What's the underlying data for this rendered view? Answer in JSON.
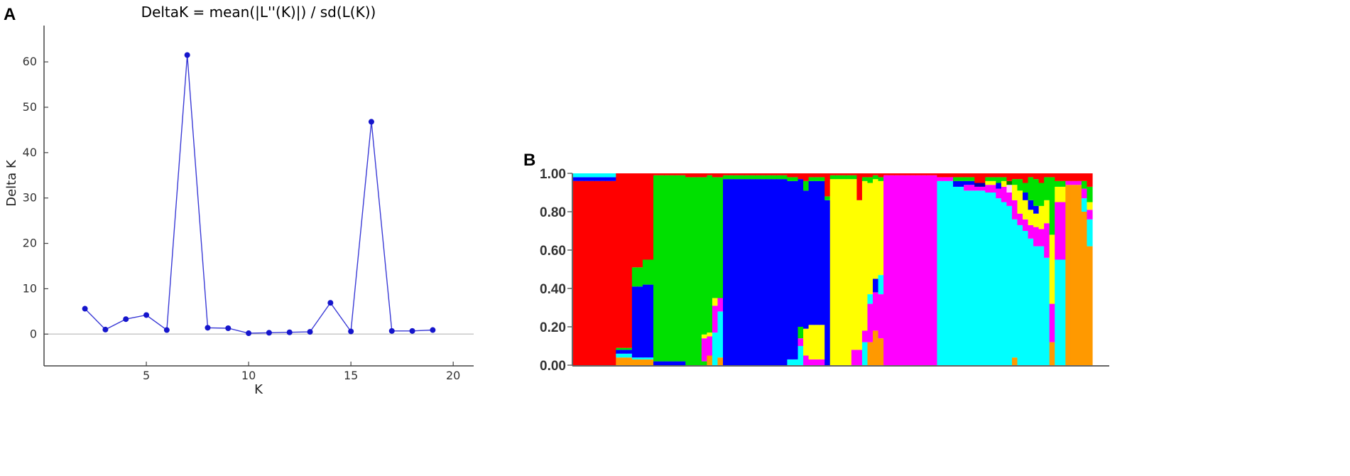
{
  "chart_data": [
    {
      "panel": "A",
      "type": "line",
      "title": "DeltaK = mean(|L''(K)|) / sd(L(K))",
      "xlabel": "K",
      "ylabel": "Delta K",
      "x": [
        2,
        3,
        4,
        5,
        6,
        7,
        8,
        9,
        10,
        11,
        12,
        13,
        14,
        15,
        16,
        17,
        18,
        19
      ],
      "y": [
        5.6,
        1.0,
        3.3,
        4.2,
        0.9,
        61.5,
        1.4,
        1.3,
        0.2,
        0.3,
        0.4,
        0.5,
        6.9,
        0.6,
        46.8,
        0.7,
        0.7,
        0.9
      ],
      "xlim": [
        0,
        21
      ],
      "ylim": [
        -7,
        68
      ],
      "xticks": [
        5,
        10,
        15,
        20
      ],
      "yticks": [
        0,
        10,
        20,
        30,
        40,
        50,
        60
      ],
      "colors": {
        "line": "#3a3ad6",
        "marker": "#1515cc",
        "zero_line": "#c8c8c8"
      }
    },
    {
      "panel": "B",
      "type": "bar",
      "stacked": true,
      "ylim": [
        0,
        1
      ],
      "yticks": [
        "0.00",
        "0.20",
        "0.40",
        "0.60",
        "0.80",
        "1.00"
      ],
      "colors": {
        "red": "#ff0000",
        "green": "#00e000",
        "blue": "#0000ff",
        "yellow": "#ffff00",
        "magenta": "#ff00ff",
        "cyan": "#00ffff",
        "orange": "#ff9900",
        "navy": "#0000aa",
        "darkgreen": "#007700",
        "lightpink": "#ffccff"
      },
      "groups": [
        {
          "n": 8,
          "comp": [
            [
              "red",
              0.96
            ],
            [
              "blue",
              0.02
            ],
            [
              "cyan",
              0.02
            ]
          ]
        },
        {
          "n": 3,
          "comp": [
            [
              "orange",
              0.04
            ],
            [
              "cyan",
              0.02
            ],
            [
              "blue",
              0.02
            ],
            [
              "green",
              0.01
            ],
            [
              "red",
              0.91
            ]
          ]
        },
        {
          "n": 2,
          "comp": [
            [
              "orange",
              0.03
            ],
            [
              "cyan",
              0.01
            ],
            [
              "blue",
              0.37
            ],
            [
              "green",
              0.1
            ],
            [
              "red",
              0.49
            ]
          ]
        },
        {
          "n": 2,
          "comp": [
            [
              "orange",
              0.03
            ],
            [
              "cyan",
              0.01
            ],
            [
              "blue",
              0.38
            ],
            [
              "green",
              0.13
            ],
            [
              "red",
              0.45
            ]
          ]
        },
        {
          "n": 6,
          "comp": [
            [
              "blue",
              0.02
            ],
            [
              "green",
              0.97
            ],
            [
              "red",
              0.01
            ]
          ]
        },
        {
          "n": 3,
          "comp": [
            [
              "green",
              0.98
            ],
            [
              "red",
              0.02
            ]
          ]
        },
        {
          "n": 1,
          "comp": [
            [
              "green",
              0.02
            ],
            [
              "magenta",
              0.12
            ],
            [
              "yellow",
              0.02
            ],
            [
              "green",
              0.82
            ],
            [
              "red",
              0.02
            ]
          ]
        },
        {
          "n": 1,
          "comp": [
            [
              "orange",
              0.05
            ],
            [
              "magenta",
              0.1
            ],
            [
              "yellow",
              0.02
            ],
            [
              "green",
              0.82
            ],
            [
              "red",
              0.01
            ]
          ]
        },
        {
          "n": 1,
          "comp": [
            [
              "cyan",
              0.17
            ],
            [
              "magenta",
              0.14
            ],
            [
              "yellow",
              0.04
            ],
            [
              "green",
              0.63
            ],
            [
              "red",
              0.02
            ]
          ]
        },
        {
          "n": 1,
          "comp": [
            [
              "orange",
              0.04
            ],
            [
              "cyan",
              0.24
            ],
            [
              "magenta",
              0.07
            ],
            [
              "green",
              0.63
            ],
            [
              "red",
              0.02
            ]
          ]
        },
        {
          "n": 12,
          "comp": [
            [
              "blue",
              0.97
            ],
            [
              "green",
              0.02
            ],
            [
              "red",
              0.01
            ]
          ]
        },
        {
          "n": 2,
          "comp": [
            [
              "cyan",
              0.03
            ],
            [
              "blue",
              0.93
            ],
            [
              "green",
              0.02
            ],
            [
              "red",
              0.02
            ]
          ]
        },
        {
          "n": 1,
          "comp": [
            [
              "cyan",
              0.1
            ],
            [
              "magenta",
              0.04
            ],
            [
              "green",
              0.06
            ],
            [
              "blue",
              0.77
            ],
            [
              "red",
              0.03
            ]
          ]
        },
        {
          "n": 1,
          "comp": [
            [
              "magenta",
              0.05
            ],
            [
              "yellow",
              0.14
            ],
            [
              "blue",
              0.72
            ],
            [
              "green",
              0.05
            ],
            [
              "red",
              0.04
            ]
          ]
        },
        {
          "n": 3,
          "comp": [
            [
              "magenta",
              0.03
            ],
            [
              "yellow",
              0.18
            ],
            [
              "blue",
              0.75
            ],
            [
              "green",
              0.02
            ],
            [
              "red",
              0.02
            ]
          ]
        },
        {
          "n": 1,
          "comp": [
            [
              "blue",
              0.86
            ],
            [
              "green",
              0.02
            ],
            [
              "red",
              0.12
            ]
          ]
        },
        {
          "n": 4,
          "comp": [
            [
              "yellow",
              0.97
            ],
            [
              "green",
              0.02
            ],
            [
              "red",
              0.01
            ]
          ]
        },
        {
          "n": 1,
          "comp": [
            [
              "magenta",
              0.08
            ],
            [
              "yellow",
              0.89
            ],
            [
              "green",
              0.02
            ],
            [
              "red",
              0.01
            ]
          ]
        },
        {
          "n": 1,
          "comp": [
            [
              "magenta",
              0.08
            ],
            [
              "yellow",
              0.78
            ],
            [
              "red",
              0.14
            ]
          ]
        },
        {
          "n": 1,
          "comp": [
            [
              "cyan",
              0.12
            ],
            [
              "magenta",
              0.06
            ],
            [
              "yellow",
              0.78
            ],
            [
              "green",
              0.02
            ],
            [
              "red",
              0.02
            ]
          ]
        },
        {
          "n": 1,
          "comp": [
            [
              "orange",
              0.12
            ],
            [
              "magenta",
              0.2
            ],
            [
              "cyan",
              0.05
            ],
            [
              "yellow",
              0.58
            ],
            [
              "green",
              0.03
            ],
            [
              "red",
              0.02
            ]
          ]
        },
        {
          "n": 1,
          "comp": [
            [
              "orange",
              0.18
            ],
            [
              "magenta",
              0.2
            ],
            [
              "blue",
              0.07
            ],
            [
              "yellow",
              0.52
            ],
            [
              "green",
              0.02
            ],
            [
              "red",
              0.01
            ]
          ]
        },
        {
          "n": 1,
          "comp": [
            [
              "orange",
              0.14
            ],
            [
              "magenta",
              0.23
            ],
            [
              "cyan",
              0.1
            ],
            [
              "yellow",
              0.49
            ],
            [
              "green",
              0.02
            ],
            [
              "red",
              0.02
            ]
          ]
        },
        {
          "n": 10,
          "comp": [
            [
              "magenta",
              0.99
            ],
            [
              "red",
              0.01
            ]
          ]
        },
        {
          "n": 3,
          "comp": [
            [
              "cyan",
              0.96
            ],
            [
              "magenta",
              0.02
            ],
            [
              "red",
              0.02
            ]
          ]
        },
        {
          "n": 2,
          "comp": [
            [
              "cyan",
              0.93
            ],
            [
              "blue",
              0.03
            ],
            [
              "green",
              0.02
            ],
            [
              "red",
              0.02
            ]
          ]
        },
        {
          "n": 2,
          "comp": [
            [
              "cyan",
              0.91
            ],
            [
              "magenta",
              0.03
            ],
            [
              "blue",
              0.02
            ],
            [
              "green",
              0.02
            ],
            [
              "red",
              0.02
            ]
          ]
        },
        {
          "n": 2,
          "comp": [
            [
              "cyan",
              0.91
            ],
            [
              "magenta",
              0.02
            ],
            [
              "navy",
              0.02
            ],
            [
              "red",
              0.05
            ]
          ]
        },
        {
          "n": 2,
          "comp": [
            [
              "cyan",
              0.9
            ],
            [
              "magenta",
              0.04
            ],
            [
              "yellow",
              0.02
            ],
            [
              "green",
              0.02
            ],
            [
              "red",
              0.02
            ]
          ]
        },
        {
          "n": 1,
          "comp": [
            [
              "cyan",
              0.87
            ],
            [
              "magenta",
              0.05
            ],
            [
              "blue",
              0.03
            ],
            [
              "green",
              0.03
            ],
            [
              "red",
              0.02
            ]
          ]
        },
        {
          "n": 1,
          "comp": [
            [
              "cyan",
              0.85
            ],
            [
              "magenta",
              0.08
            ],
            [
              "yellow",
              0.03
            ],
            [
              "green",
              0.02
            ],
            [
              "red",
              0.02
            ]
          ]
        },
        {
          "n": 1,
          "comp": [
            [
              "cyan",
              0.83
            ],
            [
              "magenta",
              0.07
            ],
            [
              "lightpink",
              0.04
            ],
            [
              "darkgreen",
              0.02
            ],
            [
              "red",
              0.04
            ]
          ]
        },
        {
          "n": 1,
          "comp": [
            [
              "orange",
              0.04
            ],
            [
              "cyan",
              0.72
            ],
            [
              "magenta",
              0.1
            ],
            [
              "yellow",
              0.08
            ],
            [
              "green",
              0.03
            ],
            [
              "red",
              0.03
            ]
          ]
        },
        {
          "n": 1,
          "comp": [
            [
              "cyan",
              0.73
            ],
            [
              "magenta",
              0.06
            ],
            [
              "yellow",
              0.12
            ],
            [
              "green",
              0.06
            ],
            [
              "red",
              0.03
            ]
          ]
        },
        {
          "n": 1,
          "comp": [
            [
              "cyan",
              0.7
            ],
            [
              "magenta",
              0.06
            ],
            [
              "yellow",
              0.1
            ],
            [
              "blue",
              0.04
            ],
            [
              "green",
              0.05
            ],
            [
              "red",
              0.05
            ]
          ]
        },
        {
          "n": 1,
          "comp": [
            [
              "cyan",
              0.66
            ],
            [
              "magenta",
              0.07
            ],
            [
              "yellow",
              0.08
            ],
            [
              "blue",
              0.05
            ],
            [
              "green",
              0.12
            ],
            [
              "red",
              0.02
            ]
          ]
        },
        {
          "n": 1,
          "comp": [
            [
              "cyan",
              0.62
            ],
            [
              "magenta",
              0.1
            ],
            [
              "yellow",
              0.07
            ],
            [
              "blue",
              0.04
            ],
            [
              "green",
              0.14
            ],
            [
              "red",
              0.03
            ]
          ]
        },
        {
          "n": 1,
          "comp": [
            [
              "cyan",
              0.62
            ],
            [
              "magenta",
              0.09
            ],
            [
              "yellow",
              0.12
            ],
            [
              "green",
              0.12
            ],
            [
              "red",
              0.05
            ]
          ]
        },
        {
          "n": 1,
          "comp": [
            [
              "cyan",
              0.56
            ],
            [
              "magenta",
              0.18
            ],
            [
              "yellow",
              0.12
            ],
            [
              "green",
              0.12
            ],
            [
              "red",
              0.02
            ]
          ]
        },
        {
          "n": 1,
          "comp": [
            [
              "orange",
              0.12
            ],
            [
              "magenta",
              0.2
            ],
            [
              "yellow",
              0.36
            ],
            [
              "green",
              0.3
            ],
            [
              "red",
              0.02
            ]
          ]
        },
        {
          "n": 2,
          "comp": [
            [
              "cyan",
              0.55
            ],
            [
              "magenta",
              0.3
            ],
            [
              "yellow",
              0.08
            ],
            [
              "green",
              0.03
            ],
            [
              "red",
              0.04
            ]
          ]
        },
        {
          "n": 3,
          "comp": [
            [
              "orange",
              0.94
            ],
            [
              "magenta",
              0.02
            ],
            [
              "red",
              0.04
            ]
          ]
        },
        {
          "n": 1,
          "comp": [
            [
              "orange",
              0.8
            ],
            [
              "cyan",
              0.07
            ],
            [
              "magenta",
              0.05
            ],
            [
              "green",
              0.04
            ],
            [
              "red",
              0.04
            ]
          ]
        },
        {
          "n": 1,
          "comp": [
            [
              "orange",
              0.62
            ],
            [
              "cyan",
              0.14
            ],
            [
              "magenta",
              0.05
            ],
            [
              "yellow",
              0.04
            ],
            [
              "green",
              0.08
            ],
            [
              "red",
              0.07
            ]
          ]
        }
      ]
    }
  ]
}
